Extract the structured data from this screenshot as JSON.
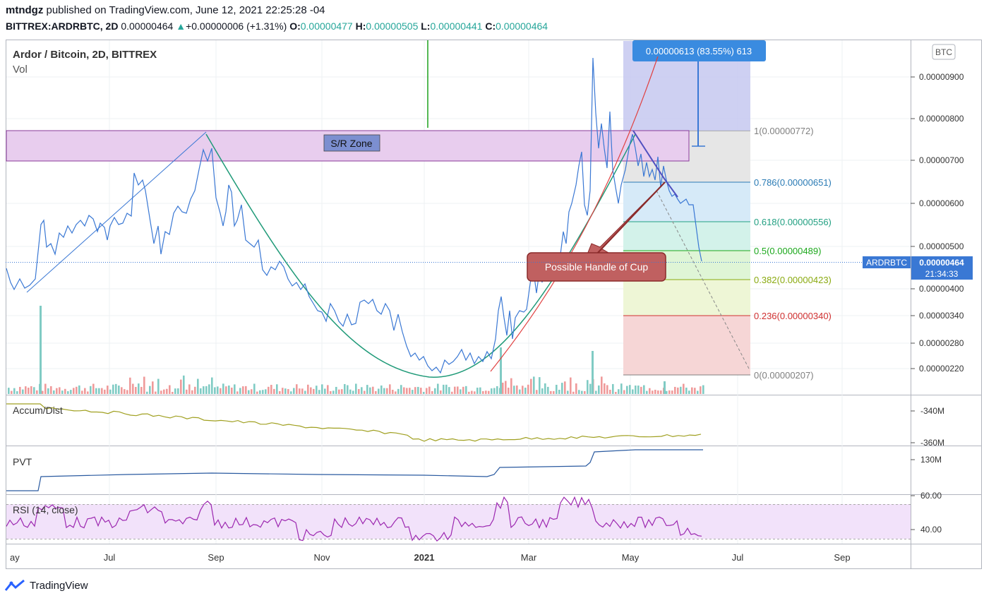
{
  "header": {
    "author": "mtndgz",
    "published": "published on TradingView.com, June 12, 2021 22:25:28 -04",
    "symbol": "BITTREX:ARDRBTC, 2D",
    "price": "0.00000464",
    "change": "+0.00000006 (+1.31%)",
    "o_label": "O:",
    "o": "0.00000477",
    "h_label": "H:",
    "h": "0.00000505",
    "l_label": "L:",
    "l": "0.00000441",
    "c_label": "C:",
    "c": "0.00000464"
  },
  "pane_labels": {
    "main": "Ardor / Bitcoin, 2D, BITTREX",
    "vol": "Vol",
    "accum": "Accum/Dist",
    "pvt": "PVT",
    "rsi": "RSI (14, close)"
  },
  "currency_badge": "BTC",
  "last_price_tag": {
    "symbol": "ARDRBTC",
    "price": "0.00000464",
    "countdown": "21:34:33"
  },
  "measure_label": "0.00000613 (83.55%) 613",
  "sr_zone_label": "S/R Zone",
  "callout_label": "Possible Handle of Cup",
  "footer": {
    "brand": "TradingView"
  },
  "colors": {
    "price_line": "#3a78d4",
    "cup_curve": "#1f9a78",
    "red_trend": "#e04040",
    "zone_fill": "#e8cdee",
    "zone_border": "#8a3a9a",
    "callout_fill": "#c06060",
    "rsi_line": "#9c27b0",
    "accum_line": "#a0a020",
    "pvt_line": "#2a5aa0",
    "vol_up": "#80cbc4",
    "vol_down": "#ef9a9a"
  },
  "chart_data": {
    "type": "line",
    "title": "Ardor / Bitcoin, 2D, BITTREX",
    "x_tick_labels": [
      "ay",
      "Jul",
      "Sep",
      "Nov",
      "2021",
      "Mar",
      "May",
      "Jul",
      "Sep"
    ],
    "y_tick_labels": [
      "0.00000900",
      "0.00000800",
      "0.00000700",
      "0.00000600",
      "0.00000500",
      "0.00000400",
      "0.00000340",
      "0.00000280",
      "0.00000220"
    ],
    "fib_levels": [
      {
        "label": "1(0.00000772)",
        "value": 7.72e-06,
        "color": "#808080"
      },
      {
        "label": "0.786(0.00000651)",
        "value": 6.51e-06,
        "color": "#2a7bb5"
      },
      {
        "label": "0.618(0.00000556)",
        "value": 5.56e-06,
        "color": "#22a082"
      },
      {
        "label": "0.5(0.00000489)",
        "value": 4.89e-06,
        "color": "#1ca81c"
      },
      {
        "label": "0.382(0.00000423)",
        "value": 4.23e-06,
        "color": "#8aaa10"
      },
      {
        "label": "0.236(0.00000340)",
        "value": 3.4e-06,
        "color": "#d03030"
      },
      {
        "label": "0(0.00000207)",
        "value": 2.07e-06,
        "color": "#808080"
      }
    ],
    "accum_ticks": [
      "-340M",
      "-360M"
    ],
    "pvt_ticks": [
      "130M"
    ],
    "rsi_ticks": [
      "60.00",
      "40.00"
    ]
  }
}
